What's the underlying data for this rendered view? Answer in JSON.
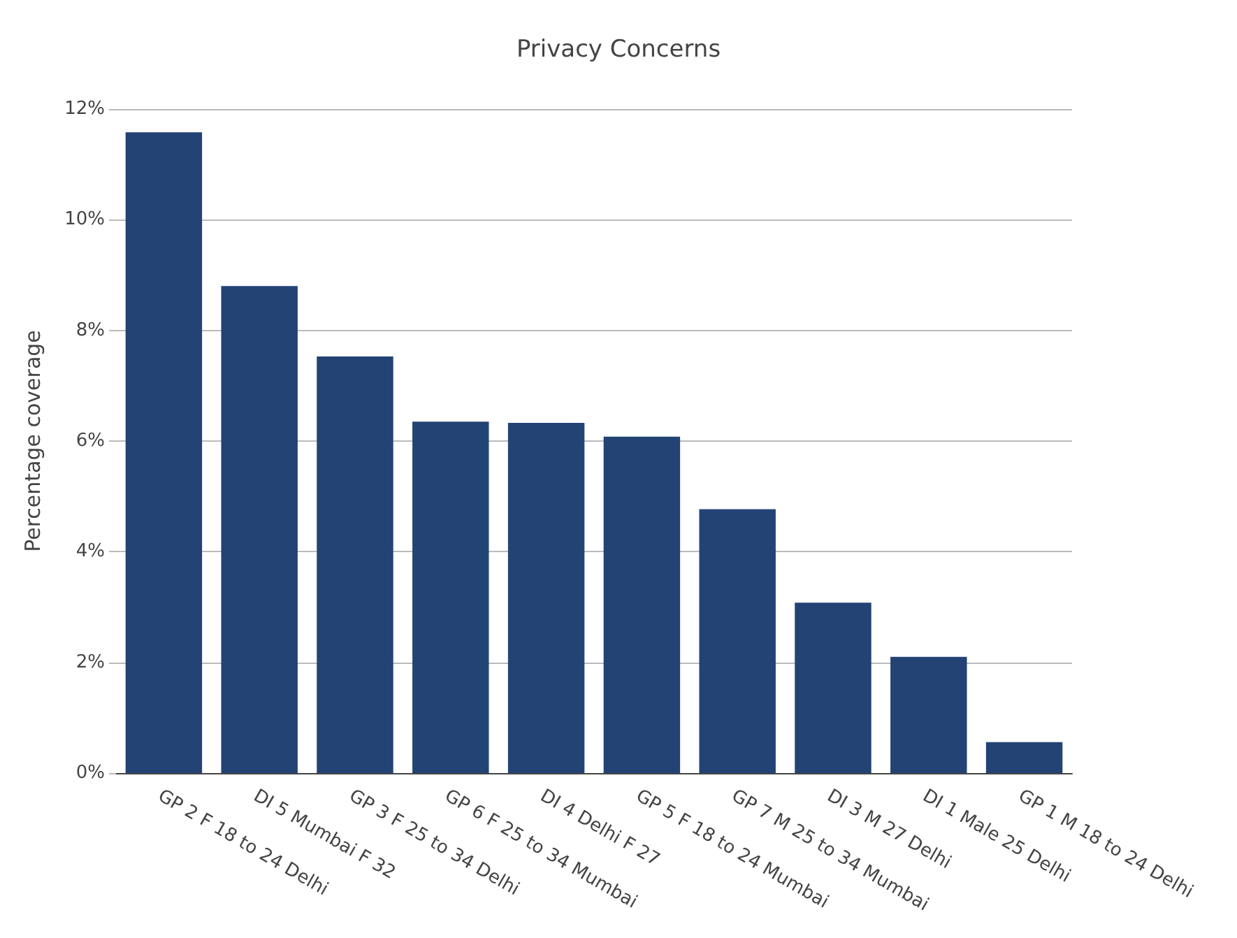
{
  "chart_data": {
    "type": "bar",
    "title": "Privacy Concerns",
    "ylabel": "Percentage coverage",
    "categories": [
      "GP 2 F 18 to 24 Delhi",
      "DI 5 Mumbai F 32",
      "GP 3 F 25 to 34 Delhi",
      "GP 6 F 25 to 34 Mumbai",
      "DI 4 Delhi F 27",
      "GP 5 F 18 to 24 Mumbai",
      "GP 7 M 25 to 34 Mumbai",
      "DI 3 M 27 Delhi",
      "DI 1 Male 25 Delhi",
      "GP 1 M 18 to 24 Delhi"
    ],
    "values": [
      11.58,
      8.8,
      7.53,
      6.35,
      6.33,
      6.08,
      4.77,
      3.08,
      2.1,
      0.56
    ],
    "color": "#234375",
    "ylim": [
      0,
      12
    ],
    "yticks": [
      {
        "value": 0,
        "label": "0%"
      },
      {
        "value": 2,
        "label": "2%"
      },
      {
        "value": 4,
        "label": "4%"
      },
      {
        "value": 6,
        "label": "6%"
      },
      {
        "value": 8,
        "label": "8%"
      },
      {
        "value": 10,
        "label": "10%"
      },
      {
        "value": 12,
        "label": "12%"
      }
    ],
    "grid": "y"
  }
}
